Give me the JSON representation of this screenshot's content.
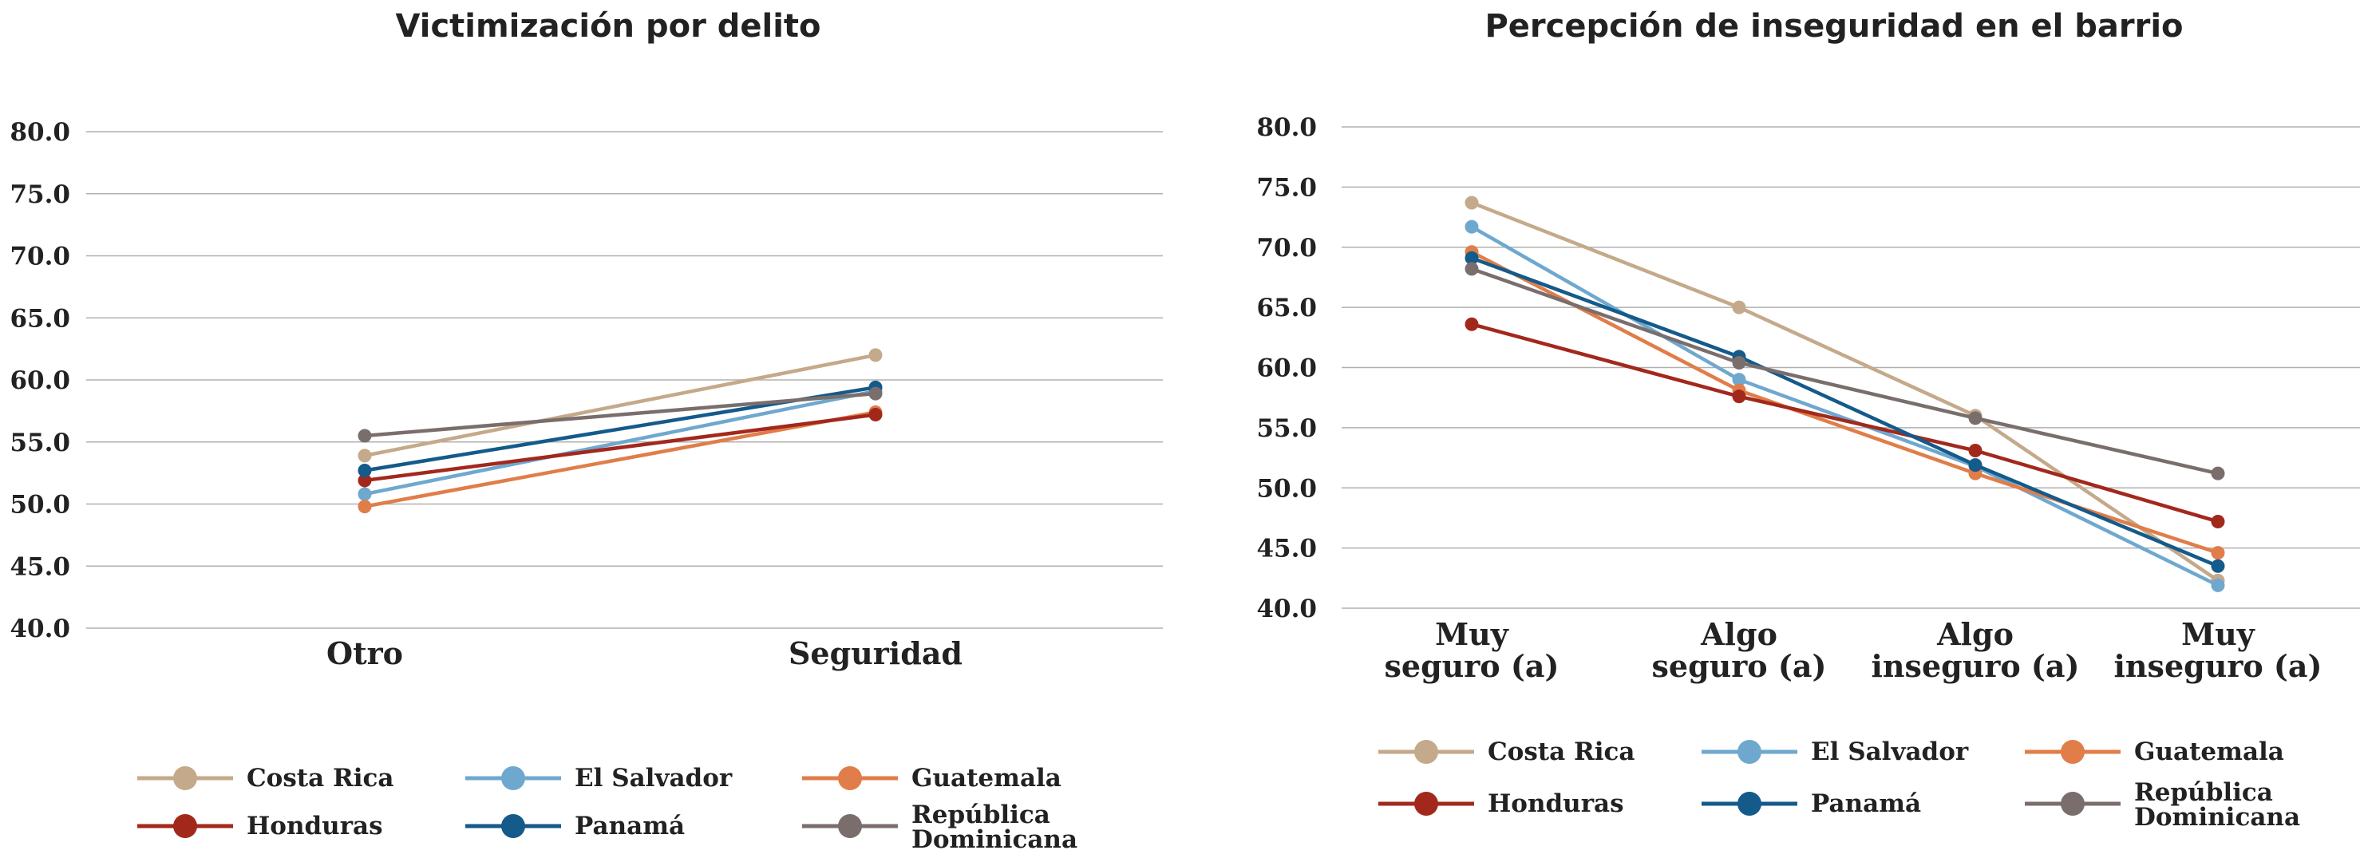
{
  "chart_data": [
    {
      "type": "line",
      "title": "Victimización por delito",
      "categories": [
        "Otro",
        "Seguridad"
      ],
      "ylim": [
        40,
        80
      ],
      "yticks": [
        "80.0",
        "75.0",
        "70.0",
        "65.0",
        "60.0",
        "55.0",
        "50.0",
        "45.0",
        "40.0"
      ],
      "grid": true,
      "legend": "bottom",
      "series": [
        {
          "name": "Costa Rica",
          "color": "#c4a98a",
          "values": [
            53.9,
            62.0
          ]
        },
        {
          "name": "El Salvador",
          "color": "#6fa8cf",
          "values": [
            50.8,
            59.1
          ]
        },
        {
          "name": "Guatemala",
          "color": "#e07d49",
          "values": [
            49.8,
            57.4
          ]
        },
        {
          "name": "Honduras",
          "color": "#a3281c",
          "values": [
            51.9,
            57.2
          ]
        },
        {
          "name": "Panamá",
          "color": "#145a8a",
          "values": [
            52.7,
            59.4
          ]
        },
        {
          "name": "República Dominicana",
          "color": "#7a6e6d",
          "values": [
            55.5,
            58.9
          ]
        }
      ]
    },
    {
      "type": "line",
      "title": "Percepción de inseguridad en el barrio",
      "categories": [
        "Muy seguro (a)",
        "Algo seguro (a)",
        "Algo inseguro (a)",
        "Muy inseguro (a)"
      ],
      "ylim": [
        40,
        80
      ],
      "yticks": [
        "80.0",
        "75.0",
        "70.0",
        "65.0",
        "60.0",
        "55.0",
        "50.0",
        "45.0",
        "40.0"
      ],
      "grid": true,
      "legend": "bottom",
      "series": [
        {
          "name": "Costa Rica",
          "color": "#c4a98a",
          "values": [
            73.7,
            65.0,
            56.0,
            42.3
          ]
        },
        {
          "name": "El Salvador",
          "color": "#6fa8cf",
          "values": [
            71.7,
            59.0,
            51.8,
            41.9
          ]
        },
        {
          "name": "Guatemala",
          "color": "#e07d49",
          "values": [
            69.6,
            58.1,
            51.2,
            44.6
          ]
        },
        {
          "name": "Honduras",
          "color": "#a3281c",
          "values": [
            63.6,
            57.6,
            53.1,
            47.2
          ]
        },
        {
          "name": "Panamá",
          "color": "#145a8a",
          "values": [
            69.1,
            60.9,
            51.9,
            43.5
          ]
        },
        {
          "name": "República Dominicana",
          "color": "#7a6e6d",
          "values": [
            68.2,
            60.4,
            55.8,
            51.2
          ]
        }
      ]
    }
  ]
}
